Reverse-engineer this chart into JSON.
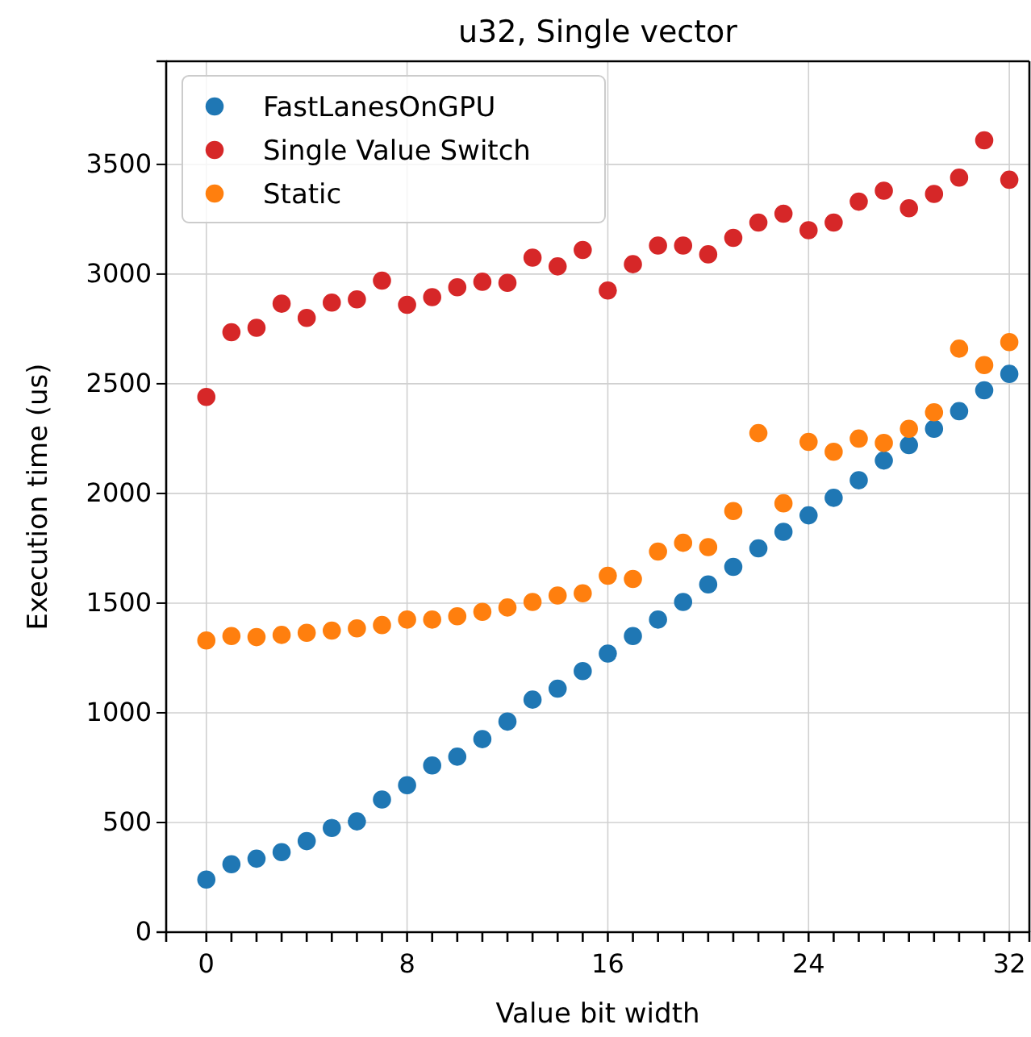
{
  "chart_data": {
    "type": "scatter",
    "title": "u32, Single vector",
    "xlabel": "Value bit width",
    "ylabel": "Execution time (us)",
    "x": [
      0,
      1,
      2,
      3,
      4,
      5,
      6,
      7,
      8,
      9,
      10,
      11,
      12,
      13,
      14,
      15,
      16,
      17,
      18,
      19,
      20,
      21,
      22,
      23,
      24,
      25,
      26,
      27,
      28,
      29,
      30,
      31,
      32
    ],
    "series": [
      {
        "name": "FastLanesOnGPU",
        "color": "#1f77b4",
        "values": [
          240,
          310,
          335,
          365,
          415,
          475,
          505,
          605,
          670,
          760,
          800,
          880,
          960,
          1060,
          1110,
          1190,
          1270,
          1350,
          1425,
          1505,
          1585,
          1665,
          1750,
          1825,
          1900,
          1980,
          2060,
          2150,
          2220,
          2295,
          2375,
          2470,
          2545
        ]
      },
      {
        "name": "Single Value Switch",
        "color": "#d62728",
        "values": [
          2440,
          2735,
          2755,
          2865,
          2800,
          2870,
          2885,
          2970,
          2860,
          2895,
          2940,
          2965,
          2960,
          3075,
          3035,
          3110,
          2925,
          3045,
          3130,
          3130,
          3090,
          3165,
          3235,
          3275,
          3200,
          3235,
          3330,
          3380,
          3300,
          3365,
          3440,
          3610,
          3430
        ]
      },
      {
        "name": "Static",
        "color": "#ff7f0e",
        "values": [
          1330,
          1350,
          1345,
          1355,
          1365,
          1375,
          1385,
          1400,
          1425,
          1425,
          1440,
          1460,
          1480,
          1505,
          1535,
          1545,
          1625,
          1610,
          1735,
          1775,
          1755,
          1920,
          2275,
          1955,
          2235,
          2190,
          2250,
          2230,
          2295,
          2370,
          2660,
          2585,
          2690
        ]
      }
    ],
    "xlim": [
      -1.6,
      32.8
    ],
    "xticks": [
      0,
      {
        "value": 1,
        "label": null
      },
      {
        "value": 2,
        "label": null
      },
      {
        "value": 3,
        "label": null
      },
      {
        "value": 4,
        "label": null
      },
      {
        "value": 5,
        "label": null
      },
      {
        "value": 6,
        "label": null
      },
      {
        "value": 7,
        "label": null
      },
      8,
      {
        "value": 9,
        "label": null
      },
      {
        "value": 10,
        "label": null
      },
      {
        "value": 11,
        "label": null
      },
      {
        "value": 12,
        "label": null
      },
      {
        "value": 13,
        "label": null
      },
      {
        "value": 14,
        "label": null
      },
      {
        "value": 15,
        "label": null
      },
      16,
      {
        "value": 17,
        "label": null
      },
      {
        "value": 18,
        "label": null
      },
      {
        "value": 19,
        "label": null
      },
      {
        "value": 20,
        "label": null
      },
      {
        "value": 21,
        "label": null
      },
      {
        "value": 22,
        "label": null
      },
      {
        "value": 23,
        "label": null
      },
      24,
      {
        "value": 25,
        "label": null
      },
      {
        "value": 26,
        "label": null
      },
      {
        "value": 27,
        "label": null
      },
      {
        "value": 28,
        "label": null
      },
      {
        "value": 29,
        "label": null
      },
      {
        "value": 30,
        "label": null
      },
      {
        "value": 31,
        "label": null
      },
      32
    ],
    "ylim": [
      0,
      3970
    ],
    "yticks": [
      0,
      500,
      1000,
      1500,
      2000,
      2500,
      3000,
      3500
    ],
    "grid": true,
    "legend": "top left",
    "marker": "circle"
  }
}
